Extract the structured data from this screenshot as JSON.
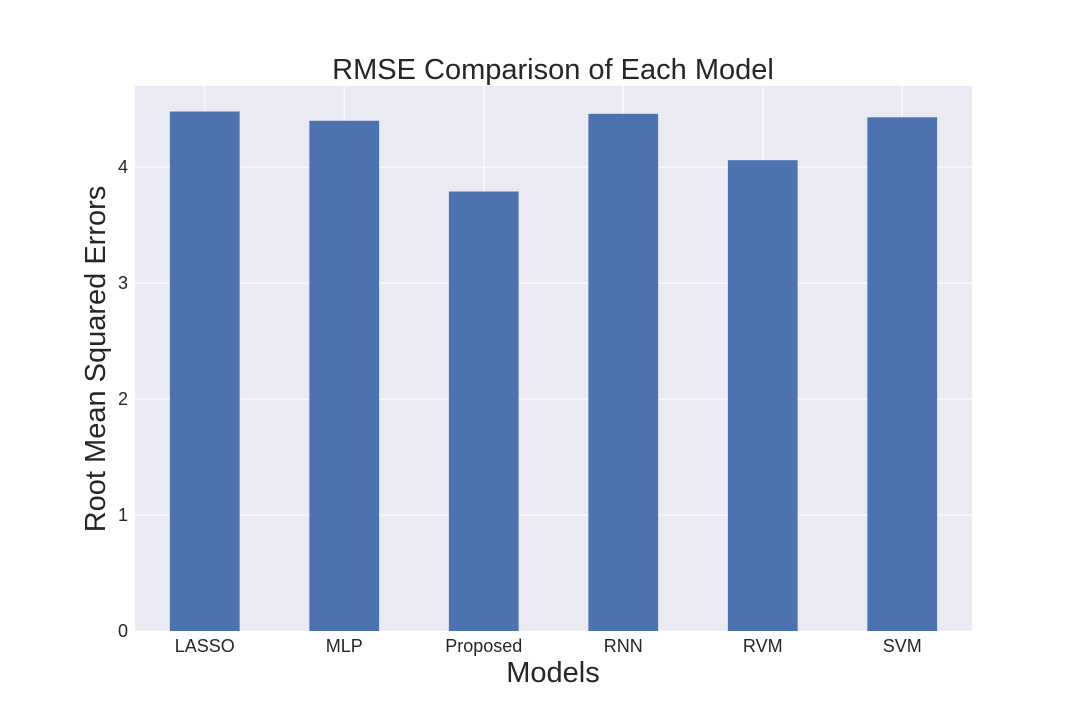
{
  "chart_data": {
    "type": "bar",
    "title": "RMSE Comparison of Each Model",
    "xlabel": "Models",
    "ylabel": "Root Mean Squared Errors",
    "categories": [
      "LASSO",
      "MLP",
      "Proposed",
      "RNN",
      "RVM",
      "SVM"
    ],
    "values": [
      4.48,
      4.4,
      3.79,
      4.46,
      4.06,
      4.43
    ],
    "ylim": [
      0,
      4.7
    ],
    "yticks": [
      0,
      1,
      2,
      3,
      4
    ],
    "grid": true,
    "legend": "none",
    "colors": {
      "bar": "#4c72b0",
      "plot_background": "#eaeaf2",
      "grid": "#ffffff",
      "text": "#262626"
    }
  }
}
